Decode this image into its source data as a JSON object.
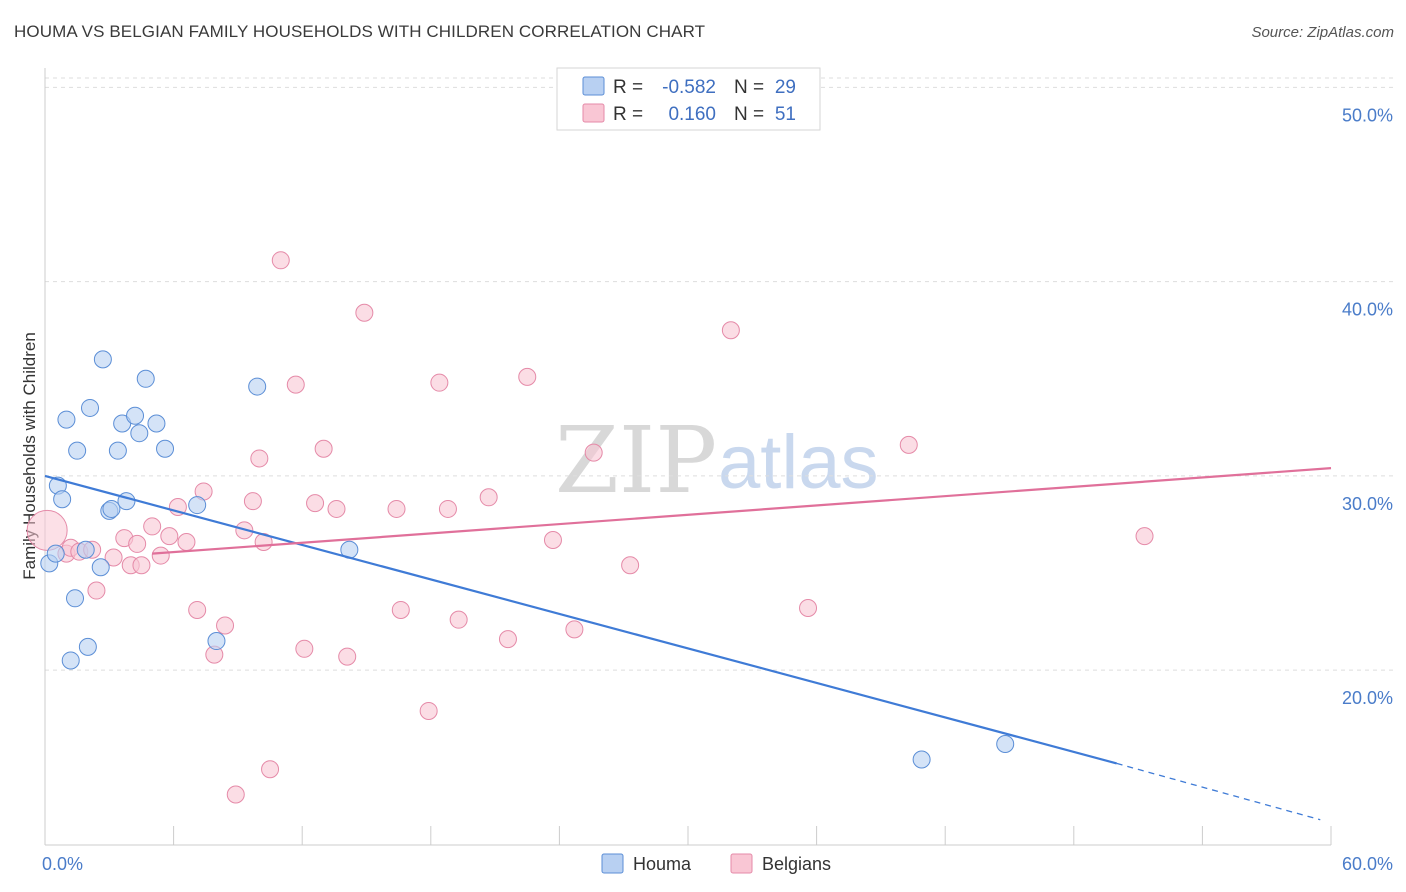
{
  "title": "HOUMA VS BELGIAN FAMILY HOUSEHOLDS WITH CHILDREN CORRELATION CHART",
  "source": "Source: ZipAtlas.com",
  "watermark": {
    "zip": "ZIP",
    "atlas": "atlas"
  },
  "colors": {
    "houma_fill": "#b8d0f2",
    "houma_stroke": "#5b8ed6",
    "houma_line": "#3f7bd6",
    "belgians_fill": "#f9c6d4",
    "belgians_stroke": "#e58aa8",
    "belgians_line": "#e0709a",
    "tick": "#4a7cc9",
    "grid": "#dddddd"
  },
  "legend": {
    "rows": [
      {
        "r_label": "R =",
        "r_value": "-0.582",
        "n_label": "N =",
        "n_value": "29"
      },
      {
        "r_label": "R =",
        "r_value": "0.160",
        "n_label": "N =",
        "n_value": "51"
      }
    ]
  },
  "bottom_legend": {
    "houma": "Houma",
    "belgians": "Belgians"
  },
  "chart_data": {
    "type": "scatter",
    "title": "HOUMA VS BELGIAN FAMILY HOUSEHOLDS WITH CHILDREN CORRELATION CHART",
    "xlabel": "",
    "ylabel": "Family Households with Children",
    "xlim": [
      0,
      60
    ],
    "ylim": [
      11,
      51
    ],
    "x_tick_labels": {
      "left": "0.0%",
      "right": "60.0%"
    },
    "y_ticks": [
      {
        "value": 20,
        "label": "20.0%"
      },
      {
        "value": 30,
        "label": "30.0%"
      },
      {
        "value": 40,
        "label": "40.0%"
      },
      {
        "value": 50,
        "label": "50.0%"
      }
    ],
    "grid": true,
    "series": [
      {
        "name": "Houma",
        "r": -0.582,
        "n": 29,
        "trend": {
          "x0": 0,
          "y0": 30.0,
          "x1": 50.0,
          "y1": 15.2,
          "dashed_to": {
            "x": 59.5,
            "y": 12.3
          }
        },
        "points": [
          [
            0.2,
            25.5
          ],
          [
            0.5,
            26.0
          ],
          [
            0.6,
            29.5
          ],
          [
            0.8,
            28.8
          ],
          [
            1.0,
            32.9
          ],
          [
            1.2,
            20.5
          ],
          [
            1.4,
            23.7
          ],
          [
            1.5,
            31.3
          ],
          [
            1.9,
            26.2
          ],
          [
            2.0,
            21.2
          ],
          [
            2.1,
            33.5
          ],
          [
            2.6,
            25.3
          ],
          [
            2.7,
            36.0
          ],
          [
            3.0,
            28.2
          ],
          [
            3.1,
            28.3
          ],
          [
            3.4,
            31.3
          ],
          [
            3.6,
            32.7
          ],
          [
            3.8,
            28.7
          ],
          [
            4.2,
            33.1
          ],
          [
            4.4,
            32.2
          ],
          [
            4.7,
            35.0
          ],
          [
            5.2,
            32.7
          ],
          [
            5.6,
            31.4
          ],
          [
            7.1,
            28.5
          ],
          [
            8.0,
            21.5
          ],
          [
            9.9,
            34.6
          ],
          [
            14.2,
            26.2
          ],
          [
            40.9,
            15.4
          ],
          [
            44.8,
            16.2
          ]
        ]
      },
      {
        "name": "Belgians",
        "r": 0.16,
        "n": 51,
        "trend": {
          "x0": 5.0,
          "y0": 26.0,
          "x1": 60.0,
          "y1": 30.4
        },
        "points": [
          [
            0.1,
            27.2
          ],
          [
            1.0,
            26.0
          ],
          [
            1.2,
            26.3
          ],
          [
            1.6,
            26.1
          ],
          [
            2.2,
            26.2
          ],
          [
            2.4,
            24.1
          ],
          [
            3.2,
            25.8
          ],
          [
            3.7,
            26.8
          ],
          [
            4.0,
            25.4
          ],
          [
            4.3,
            26.5
          ],
          [
            4.5,
            25.4
          ],
          [
            5.0,
            27.4
          ],
          [
            5.4,
            25.9
          ],
          [
            5.8,
            26.9
          ],
          [
            6.2,
            28.4
          ],
          [
            6.6,
            26.6
          ],
          [
            7.1,
            23.1
          ],
          [
            7.4,
            29.2
          ],
          [
            7.9,
            20.8
          ],
          [
            8.4,
            22.3
          ],
          [
            8.9,
            13.6
          ],
          [
            9.3,
            27.2
          ],
          [
            9.7,
            28.7
          ],
          [
            10.0,
            30.9
          ],
          [
            10.2,
            26.6
          ],
          [
            10.5,
            14.9
          ],
          [
            11.0,
            41.1
          ],
          [
            11.7,
            34.7
          ],
          [
            12.1,
            21.1
          ],
          [
            12.6,
            28.6
          ],
          [
            13.0,
            31.4
          ],
          [
            13.6,
            28.3
          ],
          [
            14.1,
            20.7
          ],
          [
            14.9,
            38.4
          ],
          [
            16.4,
            28.3
          ],
          [
            16.6,
            23.1
          ],
          [
            17.9,
            17.9
          ],
          [
            18.4,
            34.8
          ],
          [
            18.8,
            28.3
          ],
          [
            19.3,
            22.6
          ],
          [
            20.7,
            28.9
          ],
          [
            21.6,
            21.6
          ],
          [
            22.5,
            35.1
          ],
          [
            23.7,
            26.7
          ],
          [
            24.7,
            22.1
          ],
          [
            25.6,
            31.2
          ],
          [
            27.3,
            25.4
          ],
          [
            32.0,
            37.5
          ],
          [
            35.6,
            23.2
          ],
          [
            40.3,
            31.6
          ],
          [
            51.3,
            26.9
          ]
        ]
      }
    ]
  }
}
